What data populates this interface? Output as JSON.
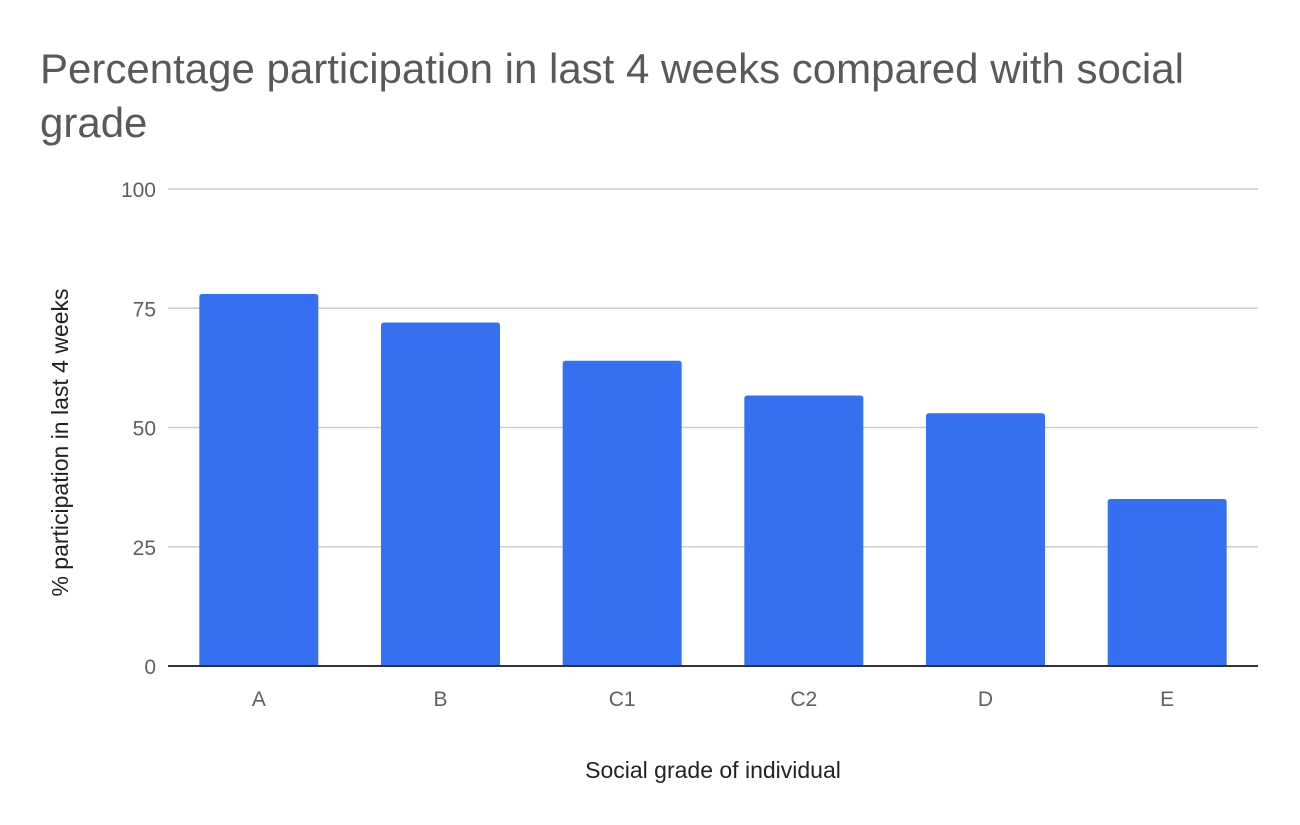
{
  "chart_data": {
    "type": "bar",
    "title": "Percentage participation in last 4 weeks compared with social grade",
    "xlabel": "Social grade of individual",
    "ylabel": "% participation in last 4 weeks",
    "categories": [
      "A",
      "B",
      "C1",
      "C2",
      "D",
      "E"
    ],
    "values": [
      78,
      72,
      64,
      56.7,
      53,
      35
    ],
    "ylim": [
      0,
      100
    ],
    "yticks": [
      0,
      25,
      50,
      75,
      100
    ],
    "grid": true,
    "legend": "none",
    "bar_color": "#3470f0",
    "grid_color": "#cccccc",
    "axis_color": "#333333"
  }
}
